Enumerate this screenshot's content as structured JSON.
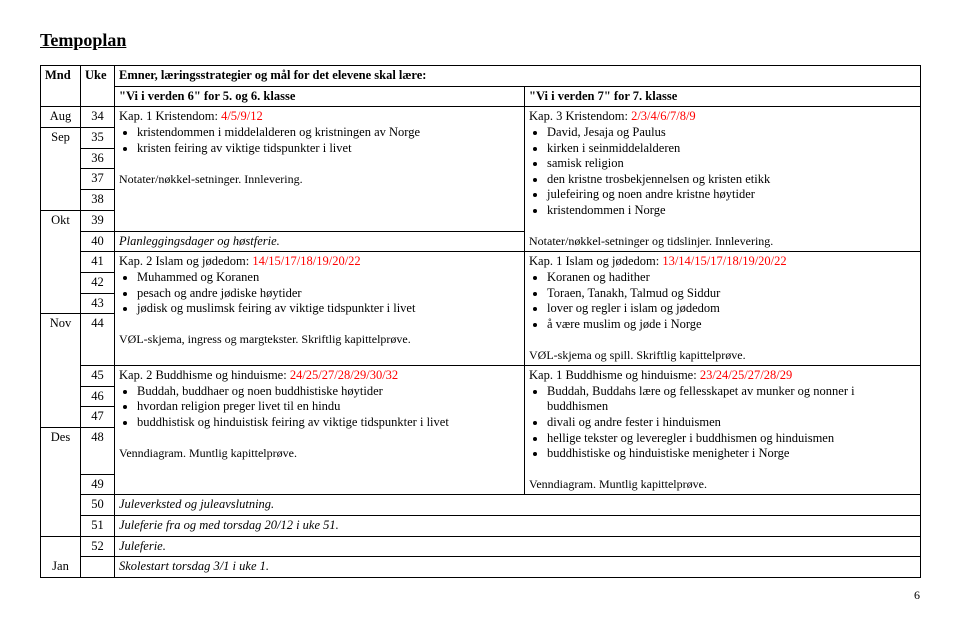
{
  "title": "Tempoplan",
  "page_number": "6",
  "headers": {
    "mnd": "Mnd",
    "uke": "Uke",
    "main": "Emner, læringsstrategier og mål for det elevene skal lære:",
    "left_book": "\"Vi i verden 6\" for 5. og 6. klasse",
    "right_book": "\"Vi i verden 7\" for 7. klasse"
  },
  "months": {
    "aug": "Aug",
    "sep": "Sep",
    "okt": "Okt",
    "nov": "Nov",
    "des": "Des",
    "jan": "Jan"
  },
  "weeks": {
    "w34": "34",
    "w35": "35",
    "w36": "36",
    "w37": "37",
    "w38": "38",
    "w39": "39",
    "w40": "40",
    "w41": "41",
    "w42": "42",
    "w43": "43",
    "w44": "44",
    "w45": "45",
    "w46": "46",
    "w47": "47",
    "w48": "48",
    "w49": "49",
    "w50": "50",
    "w51": "51",
    "w52": "52"
  },
  "block1": {
    "left_title_a": "Kap. 1 Kristendom: ",
    "left_title_b": "4/5/9/12",
    "left_items": {
      "i1": "kristendommen i middelalderen og kristningen av Norge",
      "i2": "kristen feiring av viktige tidspunkter i livet"
    },
    "left_note": "Notater/nøkkel-setninger. Innlevering.",
    "right_title_a": "Kap. 3 Kristendom: ",
    "right_title_b": "2/3/4/6/7/8/9",
    "right_items": {
      "i1": "David, Jesaja og Paulus",
      "i2": "kirken i seinmiddelalderen",
      "i3": "samisk religion",
      "i4": "den kristne trosbekjennelsen og kristen etikk",
      "i5": "julefeiring og noen andre kristne høytider",
      "i6": "kristendommen i Norge"
    },
    "right_note": "Notater/nøkkel-setninger og tidslinjer. Innlevering."
  },
  "w40_row": {
    "text": "Planleggingsdager og høstferie."
  },
  "block2": {
    "left_title_a": "Kap. 2 Islam og jødedom: ",
    "left_title_b": "14/15/17/18/19/20/22",
    "left_items": {
      "i1": "Muhammed og Koranen",
      "i2": "pesach og andre jødiske høytider",
      "i3": "jødisk og muslimsk feiring av viktige tidspunkter i livet"
    },
    "left_note": "VØL-skjema, ingress og margtekster. Skriftlig kapittelprøve.",
    "right_title_a": "Kap. 1 Islam og jødedom: ",
    "right_title_b": "13/14/15/17/18/19/20/22",
    "right_items": {
      "i1": "Koranen og hadither",
      "i2": "Toraen, Tanakh, Talmud og Siddur",
      "i3": "lover og regler i islam og jødedom",
      "i4": "å være muslim og jøde i Norge"
    },
    "right_note": "VØL-skjema og spill. Skriftlig kapittelprøve."
  },
  "block3": {
    "left_title_a": "Kap. 2 Buddhisme og hinduisme: ",
    "left_title_b": "24/25/27/28/29/30/32",
    "left_items": {
      "i1": "Buddah, buddhaer og noen buddhistiske høytider",
      "i2": "hvordan religion preger livet til en hindu",
      "i3": "buddhistisk og hinduistisk feiring av viktige tidspunkter i livet"
    },
    "left_note": "Venndiagram. Muntlig kapittelprøve.",
    "right_title_a": "Kap. 1 Buddhisme og hinduisme: ",
    "right_title_b": "23/24/25/27/28/29",
    "right_items": {
      "i1": "Buddah, Buddahs lære og fellesskapet av munker og nonner i buddhismen",
      "i2": "divali og andre fester i hinduismen",
      "i3": "hellige tekster og leveregler i buddhismen og hinduismen",
      "i4": "buddhistiske og hinduistiske menigheter i Norge"
    },
    "right_note": "Venndiagram. Muntlig kapittelprøve."
  },
  "tail": {
    "w50": "Juleverksted og juleavslutning.",
    "w51": "Juleferie fra og med torsdag 20/12 i uke 51.",
    "w52": "Juleferie.",
    "jan": "Skolestart torsdag 3/1 i uke 1."
  }
}
